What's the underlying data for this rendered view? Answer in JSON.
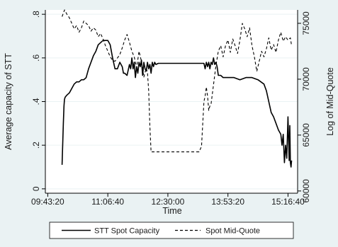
{
  "chart_data": {
    "type": "line",
    "xlabel": "Time",
    "ylabel": "Average capacity of STT",
    "y2label": "Log of Mid-Quote",
    "xlim": [
      34800,
      55800
    ],
    "ylim": [
      -0.02,
      0.82
    ],
    "y2lim": [
      59800,
      76200
    ],
    "x_ticks": [
      {
        "value": 35000,
        "label": "09:43:20"
      },
      {
        "value": 40000,
        "label": "11:06:40"
      },
      {
        "value": 45000,
        "label": "12:30:00"
      },
      {
        "value": 50000,
        "label": "13:53:20"
      },
      {
        "value": 55000,
        "label": "15:16:40"
      }
    ],
    "y_ticks": [
      {
        "value": 0,
        "label": "0"
      },
      {
        "value": 0.2,
        "label": ".2"
      },
      {
        "value": 0.4,
        "label": ".4"
      },
      {
        "value": 0.6,
        "label": ".6"
      },
      {
        "value": 0.8,
        "label": ".8"
      }
    ],
    "y2_ticks": [
      {
        "value": 60000,
        "label": "60000"
      },
      {
        "value": 65000,
        "label": "65000"
      },
      {
        "value": 70000,
        "label": "70000"
      },
      {
        "value": 75000,
        "label": "75000"
      }
    ],
    "grid": true,
    "legend_position": "bottom",
    "series": [
      {
        "name": "STT Spot Capacity",
        "axis": "left",
        "style": "solid",
        "x": [
          36190,
          36300,
          36350,
          36390,
          36450,
          36600,
          36800,
          37000,
          37200,
          37400,
          37600,
          37800,
          38000,
          38200,
          38400,
          38600,
          38800,
          39000,
          39200,
          39400,
          39600,
          39800,
          40000,
          40200,
          40400,
          40600,
          40800,
          41000,
          41200,
          41300,
          41400,
          41600,
          41800,
          41900,
          42000,
          42100,
          42200,
          42300,
          42400,
          42500,
          42600,
          42700,
          42800,
          42900,
          43000,
          43100,
          43200,
          43300,
          43400,
          43500,
          43600,
          43700,
          43800,
          43900,
          44000,
          44200,
          48000,
          48100,
          48200,
          48300,
          48400,
          48500,
          48600,
          48700,
          48800,
          48900,
          49000,
          49100,
          49200,
          49400,
          49600,
          49800,
          50000,
          50500,
          51000,
          51500,
          52000,
          52500,
          53000,
          53200,
          53400,
          53600,
          53800,
          54000,
          54200,
          54400,
          54500,
          54600,
          54700,
          54800,
          54900,
          55000,
          55100,
          55150,
          55200,
          55250,
          55300
        ],
        "values": [
          0.11,
          0.3,
          0.38,
          0.41,
          0.42,
          0.43,
          0.44,
          0.46,
          0.48,
          0.49,
          0.49,
          0.5,
          0.5,
          0.51,
          0.55,
          0.58,
          0.61,
          0.63,
          0.66,
          0.67,
          0.68,
          0.68,
          0.68,
          0.66,
          0.6,
          0.55,
          0.55,
          0.58,
          0.56,
          0.53,
          0.53,
          0.52,
          0.57,
          0.55,
          0.6,
          0.55,
          0.58,
          0.51,
          0.56,
          0.53,
          0.58,
          0.56,
          0.59,
          0.52,
          0.58,
          0.55,
          0.54,
          0.58,
          0.55,
          0.57,
          0.53,
          0.58,
          0.56,
          0.58,
          0.57,
          0.575,
          0.575,
          0.55,
          0.58,
          0.56,
          0.58,
          0.55,
          0.58,
          0.57,
          0.6,
          0.57,
          0.58,
          0.56,
          0.52,
          0.52,
          0.51,
          0.51,
          0.51,
          0.51,
          0.5,
          0.51,
          0.51,
          0.5,
          0.48,
          0.45,
          0.4,
          0.35,
          0.33,
          0.3,
          0.27,
          0.25,
          0.2,
          0.25,
          0.12,
          0.2,
          0.14,
          0.33,
          0.13,
          0.29,
          0.12,
          0.1,
          0.13
        ]
      },
      {
        "name": "Spot Mid-Quote",
        "axis": "right",
        "style": "dashed",
        "x": [
          36190,
          36400,
          36600,
          36800,
          37000,
          37200,
          37400,
          37600,
          37800,
          38000,
          38200,
          38400,
          38600,
          38800,
          39000,
          39200,
          39400,
          39600,
          39800,
          40000,
          40200,
          40400,
          40600,
          40800,
          41000,
          41200,
          41400,
          41600,
          41800,
          42000,
          42200,
          42400,
          42600,
          42800,
          43000,
          43200,
          43300,
          43400,
          43500,
          43600,
          43800,
          44000,
          45000,
          46000,
          47000,
          47600,
          47800,
          48000,
          48100,
          48200,
          48300,
          48400,
          48500,
          48600,
          48800,
          49000,
          49200,
          49400,
          49600,
          49800,
          50000,
          50200,
          50400,
          50600,
          50800,
          51000,
          51200,
          51400,
          51600,
          51800,
          52000,
          52200,
          52400,
          52600,
          52800,
          53000,
          53200,
          53400,
          53600,
          53800,
          54000,
          54200,
          54400,
          54600,
          54800,
          55000,
          55200,
          55300
        ],
        "values": [
          75600,
          76200,
          75800,
          75500,
          75000,
          74500,
          74800,
          74200,
          74600,
          75200,
          75000,
          74800,
          74300,
          74600,
          74400,
          73800,
          74100,
          73600,
          73000,
          72500,
          72000,
          71700,
          71600,
          71900,
          72200,
          72800,
          73500,
          74000,
          73300,
          72500,
          72000,
          71000,
          72500,
          71600,
          70200,
          71000,
          70600,
          69000,
          65800,
          63500,
          63500,
          63500,
          63500,
          63500,
          63500,
          63500,
          64000,
          68000,
          68500,
          69300,
          68500,
          67200,
          67600,
          67800,
          69500,
          71200,
          72500,
          73000,
          72000,
          73000,
          73500,
          72400,
          73600,
          73000,
          72300,
          73500,
          75000,
          74500,
          73800,
          74600,
          73000,
          72000,
          70700,
          71600,
          72500,
          72000,
          72700,
          73700,
          72600,
          73100,
          72400,
          73500,
          74200,
          73400,
          73800,
          73500,
          73700,
          73000
        ]
      }
    ]
  },
  "legend": {
    "items": [
      {
        "label": "STT Spot Capacity"
      },
      {
        "label": "Spot Mid-Quote"
      }
    ]
  },
  "colors": {
    "outer_bg": "#eaf2f3",
    "plot_bg": "#ffffff",
    "grid": "#eaf2f3",
    "line": "#000000"
  }
}
